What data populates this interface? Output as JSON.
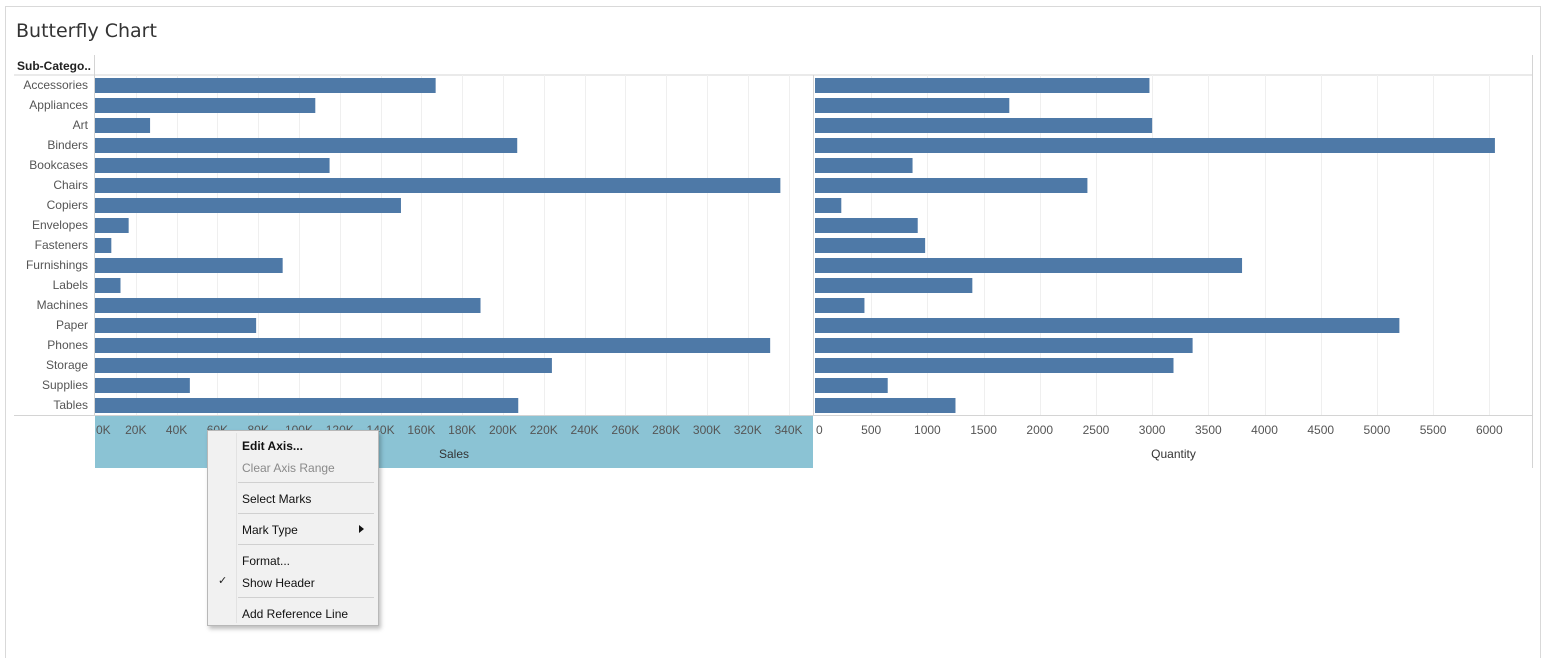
{
  "title": "Butterfly Chart",
  "row_header": "Sub-Catego..",
  "colors": {
    "bar": "#4e79a7",
    "axis_highlight": "#8bc3d4",
    "grid": "#efefef",
    "divider": "#d4d4d4"
  },
  "chart_data": {
    "type": "bar",
    "orientation": "horizontal",
    "categories": [
      "Accessories",
      "Appliances",
      "Art",
      "Binders",
      "Bookcases",
      "Chairs",
      "Copiers",
      "Envelopes",
      "Fasteners",
      "Furnishings",
      "Labels",
      "Machines",
      "Paper",
      "Phones",
      "Storage",
      "Supplies",
      "Tables"
    ],
    "panels": [
      {
        "measure": "Sales",
        "xlabel": "Sales",
        "xlim": [
          0,
          352000
        ],
        "ticks": [
          0,
          20000,
          40000,
          60000,
          80000,
          100000,
          120000,
          140000,
          160000,
          180000,
          200000,
          220000,
          240000,
          260000,
          280000,
          300000,
          320000,
          340000
        ],
        "tick_labels": [
          "0K",
          "20K",
          "40K",
          "60K",
          "80K",
          "100K",
          "120K",
          "140K",
          "160K",
          "180K",
          "200K",
          "220K",
          "240K",
          "260K",
          "280K",
          "300K",
          "320K",
          "340K"
        ],
        "values": [
          167000,
          108000,
          27000,
          207000,
          115000,
          336000,
          150000,
          16500,
          8000,
          92000,
          12500,
          189000,
          79000,
          331000,
          224000,
          46500,
          207500
        ],
        "axis_highlighted": true
      },
      {
        "measure": "Quantity",
        "xlabel": "Quantity",
        "xlim": [
          0,
          6380
        ],
        "ticks": [
          0,
          500,
          1000,
          1500,
          2000,
          2500,
          3000,
          3500,
          4000,
          4500,
          5000,
          5500,
          6000
        ],
        "tick_labels": [
          "0",
          "500",
          "1000",
          "1500",
          "2000",
          "2500",
          "3000",
          "3500",
          "4000",
          "4500",
          "5000",
          "5500",
          "6000"
        ],
        "values": [
          2976,
          1729,
          3000,
          6050,
          868,
          2424,
          234,
          914,
          980,
          3800,
          1400,
          440,
          5200,
          3360,
          3190,
          647,
          1250
        ],
        "axis_highlighted": false
      }
    ]
  },
  "context_menu": {
    "items": [
      {
        "label": "Edit Axis...",
        "bold": true,
        "disabled": false,
        "checked": false,
        "submenu": false
      },
      {
        "label": "Clear Axis Range",
        "bold": false,
        "disabled": true,
        "checked": false,
        "submenu": false
      },
      {
        "label": "Select Marks",
        "bold": false,
        "disabled": false,
        "checked": false,
        "submenu": false
      },
      {
        "label": "Mark Type",
        "bold": false,
        "disabled": false,
        "checked": false,
        "submenu": true
      },
      {
        "label": "Format...",
        "bold": false,
        "disabled": false,
        "checked": false,
        "submenu": false
      },
      {
        "label": "Show Header",
        "bold": false,
        "disabled": false,
        "checked": true,
        "submenu": false
      },
      {
        "label": "Add Reference Line",
        "bold": false,
        "disabled": false,
        "checked": false,
        "submenu": false
      }
    ],
    "check_glyph": "✓"
  }
}
